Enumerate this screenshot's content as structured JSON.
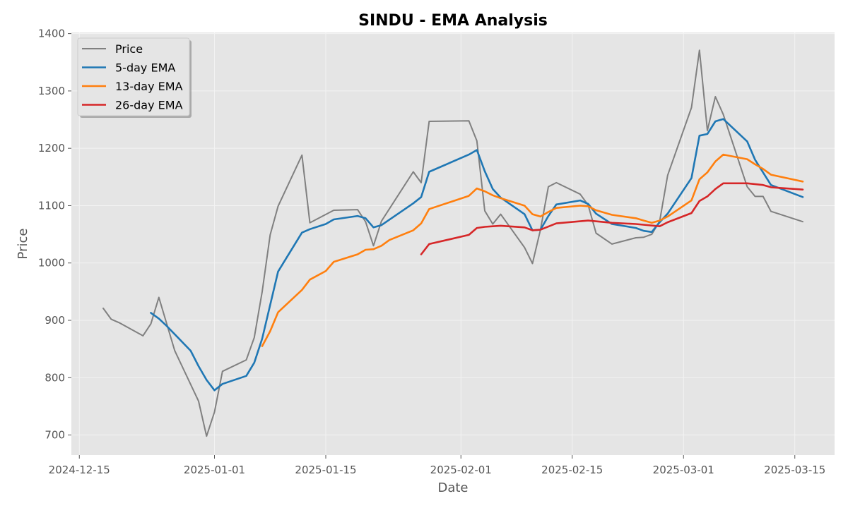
{
  "chart_data": {
    "type": "line",
    "title": "SINDU - EMA Analysis",
    "xlabel": "Date",
    "ylabel": "Price",
    "x_ticks": [
      "2024-12-15",
      "2025-01-01",
      "2025-01-15",
      "2025-02-01",
      "2025-02-15",
      "2025-03-01",
      "2025-03-15"
    ],
    "y_ticks": [
      700,
      800,
      900,
      1000,
      1100,
      1200,
      1300,
      1400
    ],
    "xlim": [
      "2024-12-14",
      "2025-03-20"
    ],
    "ylim": [
      665,
      1402
    ],
    "grid": true,
    "legend_position": "top-left",
    "colors": {
      "background": "#e5e5e5",
      "grid": "#f3f3f3",
      "price": "#808080",
      "ema5": "#1f77b4",
      "ema13": "#ff7f0e",
      "ema26": "#d62728"
    },
    "series": [
      {
        "name": "Price",
        "color": "#808080",
        "points": [
          [
            "2024-12-18",
            921
          ],
          [
            "2024-12-19",
            902
          ],
          [
            "2024-12-20",
            896
          ],
          [
            "2024-12-23",
            873
          ],
          [
            "2024-12-24",
            894
          ],
          [
            "2024-12-25",
            940
          ],
          [
            "2024-12-27",
            847
          ],
          [
            "2024-12-30",
            759
          ],
          [
            "2024-12-31",
            698
          ],
          [
            "2025-01-01",
            740
          ],
          [
            "2025-01-02",
            811
          ],
          [
            "2025-01-05",
            831
          ],
          [
            "2025-01-06",
            870
          ],
          [
            "2025-01-07",
            950
          ],
          [
            "2025-01-08",
            1049
          ],
          [
            "2025-01-09",
            1099
          ],
          [
            "2025-01-12",
            1188
          ],
          [
            "2025-01-13",
            1070
          ],
          [
            "2025-01-16",
            1092
          ],
          [
            "2025-01-19",
            1093
          ],
          [
            "2025-01-20",
            1072
          ],
          [
            "2025-01-21",
            1030
          ],
          [
            "2025-01-22",
            1073
          ],
          [
            "2025-01-26",
            1159
          ],
          [
            "2025-01-27",
            1140
          ],
          [
            "2025-01-28",
            1247
          ],
          [
            "2025-02-02",
            1248
          ],
          [
            "2025-02-03",
            1213
          ],
          [
            "2025-02-04",
            1091
          ],
          [
            "2025-02-05",
            1068
          ],
          [
            "2025-02-06",
            1085
          ],
          [
            "2025-02-09",
            1027
          ],
          [
            "2025-02-10",
            999
          ],
          [
            "2025-02-11",
            1058
          ],
          [
            "2025-02-12",
            1133
          ],
          [
            "2025-02-13",
            1140
          ],
          [
            "2025-02-16",
            1120
          ],
          [
            "2025-02-17",
            1101
          ],
          [
            "2025-02-18",
            1052
          ],
          [
            "2025-02-20",
            1033
          ],
          [
            "2025-02-23",
            1044
          ],
          [
            "2025-02-24",
            1045
          ],
          [
            "2025-02-25",
            1050
          ],
          [
            "2025-02-26",
            1073
          ],
          [
            "2025-02-27",
            1153
          ],
          [
            "2025-03-02",
            1271
          ],
          [
            "2025-03-03",
            1371
          ],
          [
            "2025-03-04",
            1231
          ],
          [
            "2025-03-05",
            1290
          ],
          [
            "2025-03-06",
            1259
          ],
          [
            "2025-03-09",
            1133
          ],
          [
            "2025-03-10",
            1116
          ],
          [
            "2025-03-11",
            1116
          ],
          [
            "2025-03-12",
            1090
          ],
          [
            "2025-03-16",
            1072
          ]
        ]
      },
      {
        "name": "5-day EMA",
        "color": "#1f77b4",
        "points": [
          [
            "2024-12-24",
            913
          ],
          [
            "2024-12-25",
            903
          ],
          [
            "2024-12-26",
            890
          ],
          [
            "2024-12-29",
            847
          ],
          [
            "2024-12-30",
            820
          ],
          [
            "2024-12-31",
            796
          ],
          [
            "2025-01-01",
            778
          ],
          [
            "2025-01-02",
            789
          ],
          [
            "2025-01-05",
            803
          ],
          [
            "2025-01-06",
            826
          ],
          [
            "2025-01-07",
            868
          ],
          [
            "2025-01-09",
            985
          ],
          [
            "2025-01-12",
            1053
          ],
          [
            "2025-01-13",
            1059
          ],
          [
            "2025-01-15",
            1068
          ],
          [
            "2025-01-16",
            1076
          ],
          [
            "2025-01-19",
            1082
          ],
          [
            "2025-01-20",
            1078
          ],
          [
            "2025-01-21",
            1062
          ],
          [
            "2025-01-22",
            1066
          ],
          [
            "2025-01-26",
            1104
          ],
          [
            "2025-01-27",
            1115
          ],
          [
            "2025-01-28",
            1159
          ],
          [
            "2025-02-02",
            1189
          ],
          [
            "2025-02-03",
            1197
          ],
          [
            "2025-02-04",
            1160
          ],
          [
            "2025-02-05",
            1129
          ],
          [
            "2025-02-06",
            1114
          ],
          [
            "2025-02-09",
            1085
          ],
          [
            "2025-02-10",
            1057
          ],
          [
            "2025-02-11",
            1058
          ],
          [
            "2025-02-12",
            1082
          ],
          [
            "2025-02-13",
            1102
          ],
          [
            "2025-02-16",
            1109
          ],
          [
            "2025-02-17",
            1103
          ],
          [
            "2025-02-18",
            1086
          ],
          [
            "2025-02-20",
            1068
          ],
          [
            "2025-02-23",
            1061
          ],
          [
            "2025-02-24",
            1056
          ],
          [
            "2025-02-25",
            1054
          ],
          [
            "2025-02-26",
            1071
          ],
          [
            "2025-02-27",
            1086
          ],
          [
            "2025-03-02",
            1148
          ],
          [
            "2025-03-03",
            1222
          ],
          [
            "2025-03-04",
            1225
          ],
          [
            "2025-03-05",
            1247
          ],
          [
            "2025-03-06",
            1251
          ],
          [
            "2025-03-09",
            1212
          ],
          [
            "2025-03-10",
            1180
          ],
          [
            "2025-03-12",
            1136
          ],
          [
            "2025-03-16",
            1115
          ]
        ]
      },
      {
        "name": "13-day EMA",
        "color": "#ff7f0e",
        "points": [
          [
            "2025-01-07",
            855
          ],
          [
            "2025-01-08",
            881
          ],
          [
            "2025-01-09",
            914
          ],
          [
            "2025-01-12",
            953
          ],
          [
            "2025-01-13",
            971
          ],
          [
            "2025-01-15",
            986
          ],
          [
            "2025-01-16",
            1002
          ],
          [
            "2025-01-19",
            1015
          ],
          [
            "2025-01-20",
            1023
          ],
          [
            "2025-01-21",
            1024
          ],
          [
            "2025-01-22",
            1030
          ],
          [
            "2025-01-23",
            1040
          ],
          [
            "2025-01-26",
            1057
          ],
          [
            "2025-01-27",
            1069
          ],
          [
            "2025-01-28",
            1094
          ],
          [
            "2025-02-02",
            1117
          ],
          [
            "2025-02-03",
            1130
          ],
          [
            "2025-02-04",
            1125
          ],
          [
            "2025-02-05",
            1118
          ],
          [
            "2025-02-06",
            1113
          ],
          [
            "2025-02-09",
            1100
          ],
          [
            "2025-02-10",
            1085
          ],
          [
            "2025-02-11",
            1081
          ],
          [
            "2025-02-12",
            1089
          ],
          [
            "2025-02-13",
            1096
          ],
          [
            "2025-02-16",
            1100
          ],
          [
            "2025-02-17",
            1099
          ],
          [
            "2025-02-18",
            1092
          ],
          [
            "2025-02-20",
            1084
          ],
          [
            "2025-02-23",
            1078
          ],
          [
            "2025-02-24",
            1074
          ],
          [
            "2025-02-25",
            1070
          ],
          [
            "2025-02-26",
            1074
          ],
          [
            "2025-02-27",
            1081
          ],
          [
            "2025-03-02",
            1109
          ],
          [
            "2025-03-03",
            1146
          ],
          [
            "2025-03-04",
            1158
          ],
          [
            "2025-03-05",
            1177
          ],
          [
            "2025-03-06",
            1189
          ],
          [
            "2025-03-09",
            1181
          ],
          [
            "2025-03-10",
            1172
          ],
          [
            "2025-03-11",
            1164
          ],
          [
            "2025-03-12",
            1154
          ],
          [
            "2025-03-16",
            1142
          ]
        ]
      },
      {
        "name": "26-day EMA",
        "color": "#d62728",
        "points": [
          [
            "2025-01-27",
            1015
          ],
          [
            "2025-01-28",
            1033
          ],
          [
            "2025-02-02",
            1049
          ],
          [
            "2025-02-03",
            1061
          ],
          [
            "2025-02-04",
            1063
          ],
          [
            "2025-02-05",
            1064
          ],
          [
            "2025-02-06",
            1065
          ],
          [
            "2025-02-09",
            1062
          ],
          [
            "2025-02-10",
            1057
          ],
          [
            "2025-02-11",
            1058
          ],
          [
            "2025-02-13",
            1069
          ],
          [
            "2025-02-17",
            1074
          ],
          [
            "2025-02-20",
            1070
          ],
          [
            "2025-02-23",
            1068
          ],
          [
            "2025-02-26",
            1064
          ],
          [
            "2025-02-27",
            1071
          ],
          [
            "2025-03-02",
            1087
          ],
          [
            "2025-03-03",
            1108
          ],
          [
            "2025-03-04",
            1116
          ],
          [
            "2025-03-05",
            1129
          ],
          [
            "2025-03-06",
            1139
          ],
          [
            "2025-03-09",
            1139
          ],
          [
            "2025-03-11",
            1136
          ],
          [
            "2025-03-12",
            1132
          ],
          [
            "2025-03-16",
            1128
          ]
        ]
      }
    ]
  }
}
